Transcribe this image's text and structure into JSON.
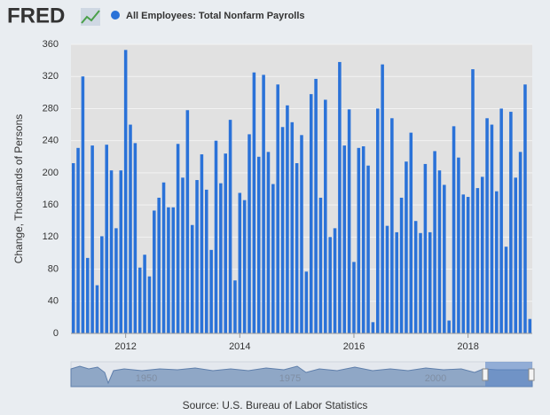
{
  "chart_data": {
    "type": "bar",
    "logo": "FRED",
    "series_name": "All Employees: Total Nonfarm Payrolls",
    "ylabel": "Change, Thousands of Persons",
    "source": "Source: U.S. Bureau of Labor Statistics",
    "navigator_labels": [
      "1950",
      "1975",
      "2000"
    ],
    "color": "#2a72d8",
    "categories": [
      null,
      null,
      null,
      null,
      null,
      null,
      null,
      null,
      null,
      null,
      null,
      "2012",
      null,
      null,
      null,
      null,
      null,
      null,
      null,
      null,
      null,
      null,
      null,
      null,
      null,
      null,
      null,
      null,
      null,
      null,
      null,
      null,
      null,
      null,
      null,
      "2014",
      null,
      null,
      null,
      null,
      null,
      null,
      null,
      null,
      null,
      null,
      null,
      null,
      null,
      null,
      null,
      null,
      null,
      null,
      null,
      null,
      null,
      null,
      null,
      "2016",
      null,
      null,
      null,
      null,
      null,
      null,
      null,
      null,
      null,
      null,
      null,
      null,
      null,
      null,
      null,
      null,
      null,
      null,
      null,
      null,
      null,
      null,
      null,
      "2018",
      null,
      null,
      null,
      null,
      null,
      null,
      null,
      null,
      null,
      null,
      null,
      null,
      null
    ],
    "values": [
      212,
      231,
      320,
      94,
      234,
      60,
      121,
      235,
      203,
      131,
      203,
      353,
      260,
      237,
      82,
      98,
      71,
      153,
      169,
      188,
      157,
      157,
      236,
      194,
      278,
      135,
      191,
      223,
      179,
      104,
      240,
      187,
      224,
      266,
      66,
      175,
      166,
      248,
      325,
      220,
      322,
      226,
      186,
      310,
      257,
      284,
      263,
      212,
      247,
      77,
      298,
      317,
      169,
      291,
      120,
      131,
      338,
      234,
      279,
      89,
      231,
      233,
      209,
      14,
      280,
      335,
      134,
      268,
      126,
      169,
      214,
      250,
      140,
      125,
      211,
      126,
      227,
      203,
      185,
      16,
      258,
      219,
      173,
      170,
      329,
      181,
      195,
      268,
      260,
      177,
      280,
      108,
      276,
      194,
      226,
      310,
      18
    ],
    "ylim": [
      0,
      360
    ],
    "yticks": [
      0,
      40,
      80,
      120,
      160,
      200,
      240,
      280,
      320,
      360
    ],
    "grid": true
  }
}
